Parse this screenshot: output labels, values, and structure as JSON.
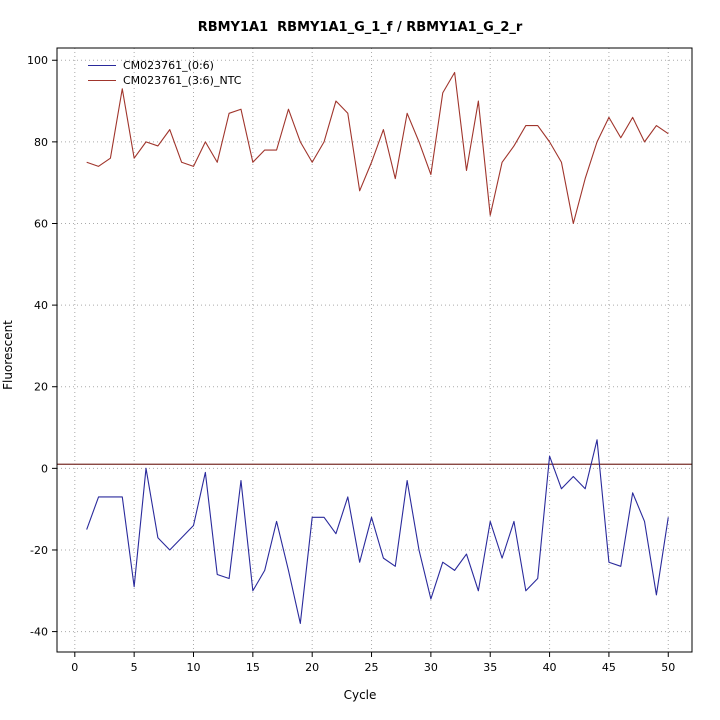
{
  "title": "RBMY1A1  RBMY1A1_G_1_f / RBMY1A1_G_2_r",
  "chart_data": {
    "type": "line",
    "title": "RBMY1A1  RBMY1A1_G_1_f / RBMY1A1_G_2_r",
    "xlabel": "Cycle",
    "ylabel": "Fluorescent",
    "xlim": [
      0,
      50
    ],
    "ylim": [
      -40,
      100
    ],
    "x_ticks": [
      0,
      5,
      10,
      15,
      20,
      25,
      30,
      35,
      40,
      45,
      50
    ],
    "y_ticks": [
      -40,
      -20,
      0,
      20,
      40,
      60,
      80,
      100
    ],
    "grid": "dotted",
    "grid_color": "#aaaaaa",
    "legend_position": "top-left",
    "threshold_line": {
      "y": 1,
      "color": "#7a2f2a"
    },
    "x": [
      1,
      2,
      3,
      4,
      5,
      6,
      7,
      8,
      9,
      10,
      11,
      12,
      13,
      14,
      15,
      16,
      17,
      18,
      19,
      20,
      21,
      22,
      23,
      24,
      25,
      26,
      27,
      28,
      29,
      30,
      31,
      32,
      33,
      34,
      35,
      36,
      37,
      38,
      39,
      40,
      41,
      42,
      43,
      44,
      45,
      46,
      47,
      48,
      49,
      50
    ],
    "series": [
      {
        "name": "CM023761_(0:6)",
        "color": "#2a2a9c",
        "values": [
          -15,
          -7,
          -7,
          -7,
          -29,
          0,
          -17,
          -20,
          -17,
          -14,
          -1,
          -26,
          -27,
          -3,
          -30,
          -25,
          -13,
          -25,
          -38,
          -12,
          -12,
          -16,
          -7,
          -23,
          -12,
          -22,
          -24,
          -3,
          -20,
          -32,
          -23,
          -25,
          -21,
          -30,
          -13,
          -22,
          -13,
          -30,
          -27,
          3,
          -5,
          -2,
          -5,
          7,
          -23,
          -24,
          -6,
          -13,
          -31,
          -12
        ]
      },
      {
        "name": "CM023761_(3:6)_NTC",
        "color": "#a0352c",
        "values": [
          75,
          74,
          76,
          93,
          76,
          80,
          79,
          83,
          75,
          74,
          80,
          75,
          87,
          88,
          75,
          78,
          78,
          88,
          80,
          75,
          80,
          90,
          87,
          68,
          75,
          83,
          71,
          87,
          80,
          72,
          92,
          97,
          73,
          90,
          62,
          75,
          79,
          84,
          84,
          80,
          75,
          60,
          71,
          80,
          86,
          81,
          86,
          80,
          84,
          82
        ]
      }
    ]
  }
}
